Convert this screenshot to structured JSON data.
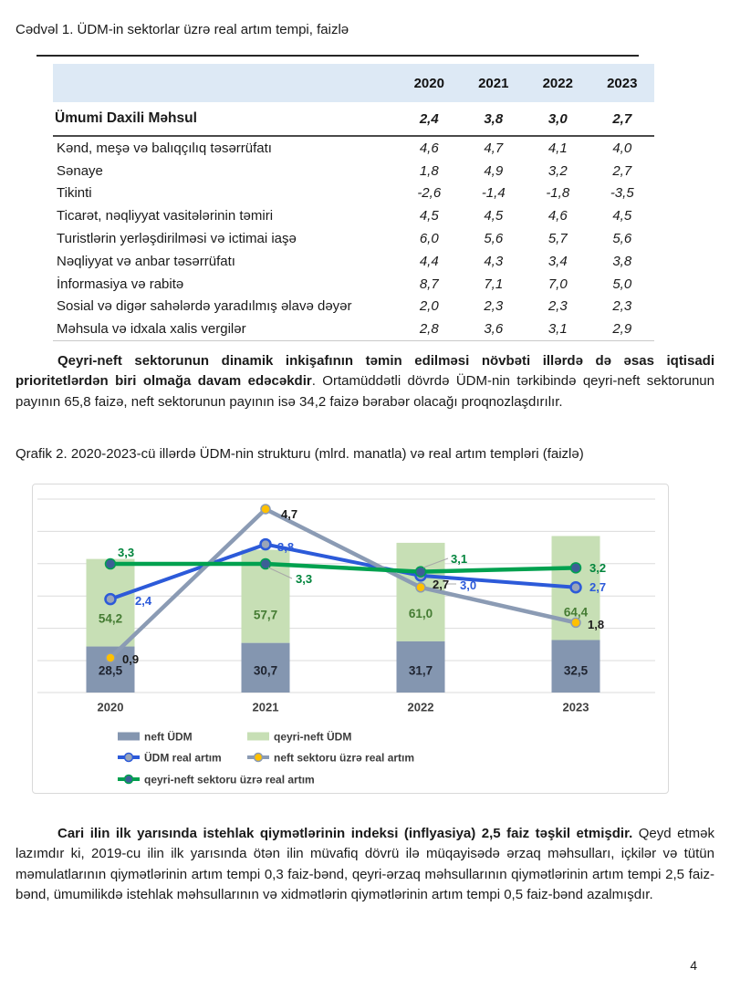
{
  "document": {
    "table_title": "Cədvəl 1. ÜDM-in sektorlar üzrə real artım tempi, faizlə",
    "paragraph1": {
      "bold": "Qeyri-neft sektorunun dinamik inkişafının təmin edilməsi növbəti illərdə də əsas iqtisadi prioritetlərdən biri olmağa davam edəcəkdir",
      "rest": ". Ortamüddətli dövrdə ÜDM-nin tərkibində qeyri-neft sektorunun payının 65,8 faizə, neft sektorunun payının isə 34,2 faizə bərabər olacağı proqnozlaşdırılır."
    },
    "chart_caption": "Qrafik 2. 2020-2023-cü illərdə ÜDM-nin strukturu (mlrd. manatla) və real artım templəri (faizlə)",
    "paragraph2": {
      "bold": "Cari ilin ilk yarısında istehlak qiymətlərinin indeksi (inflyasiya) 2,5 faiz təşkil etmişdir.",
      "rest": " Qeyd etmək lazımdır ki, 2019-cu ilin ilk yarısında ötən ilin müvafiq dövrü ilə müqayisədə ərzaq məhsulları, içkilər və tütün məmulatlarının qiymətlərinin artım tempi 0,3 faiz-bənd, qeyri-ərzaq məhsullarının qiymətlərinin artım tempi 2,5 faiz-bənd, ümumilikdə istehlak məhsullarının və xidmətlərin qiymətlərinin artım tempi 0,5 faiz-bənd azalmışdır."
    },
    "page_number": "4"
  },
  "table": {
    "col_headers": [
      "2020",
      "2021",
      "2022",
      "2023"
    ],
    "total_row": {
      "label": "Ümumi Daxili Məhsul",
      "values": [
        "2,4",
        "3,8",
        "3,0",
        "2,7"
      ]
    },
    "rows": [
      {
        "label": "Kənd, meşə və balıqçılıq təsərrüfatı",
        "values": [
          "4,6",
          "4,7",
          "4,1",
          "4,0"
        ]
      },
      {
        "label": "Sənaye",
        "values": [
          "1,8",
          "4,9",
          "3,2",
          "2,7"
        ]
      },
      {
        "label": "Tikinti",
        "values": [
          "-2,6",
          "-1,4",
          "-1,8",
          "-3,5"
        ]
      },
      {
        "label": "Ticarət, nəqliyyat vasitələrinin təmiri",
        "values": [
          "4,5",
          "4,5",
          "4,6",
          "4,5"
        ]
      },
      {
        "label": "Turistlərin yerləşdirilməsi və ictimai iaşə",
        "values": [
          "6,0",
          "5,6",
          "5,7",
          "5,6"
        ]
      },
      {
        "label": "Nəqliyyat və anbar təsərrüfatı",
        "values": [
          "4,4",
          "4,3",
          "3,4",
          "3,8"
        ]
      },
      {
        "label": "İnformasiya və rabitə",
        "values": [
          "8,7",
          "7,1",
          "7,0",
          "5,0"
        ]
      },
      {
        "label": "Sosial və digər sahələrdə yaradılmış əlavə dəyər",
        "values": [
          "2,0",
          "2,3",
          "2,3",
          "2,3"
        ]
      },
      {
        "label": "Məhsula və idxala xalis vergilər",
        "values": [
          "2,8",
          "3,6",
          "3,1",
          "2,9"
        ]
      }
    ]
  },
  "chart_data": {
    "type": "combo: stacked bar + line",
    "categories": [
      "2020",
      "2021",
      "2022",
      "2023"
    ],
    "bar_series": [
      {
        "name": "neft ÜDM",
        "color": "#8496B0",
        "label_color": "#1f2430",
        "values": [
          28.5,
          30.7,
          31.7,
          32.5
        ],
        "labels": [
          "28,5",
          "30,7",
          "31,7",
          "32,5"
        ]
      },
      {
        "name": "qeyri-neft ÜDM",
        "color": "#C7DFB5",
        "label_color": "#457C33",
        "values": [
          54.2,
          57.7,
          61.0,
          64.4
        ],
        "labels": [
          "54,2",
          "57,7",
          "61,0",
          "64,4"
        ]
      }
    ],
    "line_series": [
      {
        "name": "ÜDM real artım",
        "color": "#2C5AD9",
        "marker": "#9AA5B8",
        "label_color": "#2C5AD9",
        "values": [
          2.4,
          3.8,
          3.0,
          2.7
        ],
        "labels": [
          "2,4",
          "3,8",
          "3,0",
          "2,7"
        ]
      },
      {
        "name": "neft sektoru üzrə real artım",
        "color": "#8B9BB4",
        "marker": "#FFC000",
        "label_color": "#1a1a1a",
        "values": [
          0.9,
          4.7,
          2.7,
          1.8
        ],
        "labels": [
          "0,9",
          "4,7",
          "2,7",
          "1,8"
        ]
      },
      {
        "name": "qeyri-neft sektoru üzrə real artım",
        "color": "#00A14F",
        "marker": "#3C5F96",
        "label_color": "#00843C",
        "values": [
          3.3,
          3.3,
          3.1,
          3.2
        ],
        "labels": [
          "3,3",
          "3,3",
          "3,1",
          "3,2"
        ]
      }
    ],
    "grid": true,
    "legend_position": "bottom"
  }
}
